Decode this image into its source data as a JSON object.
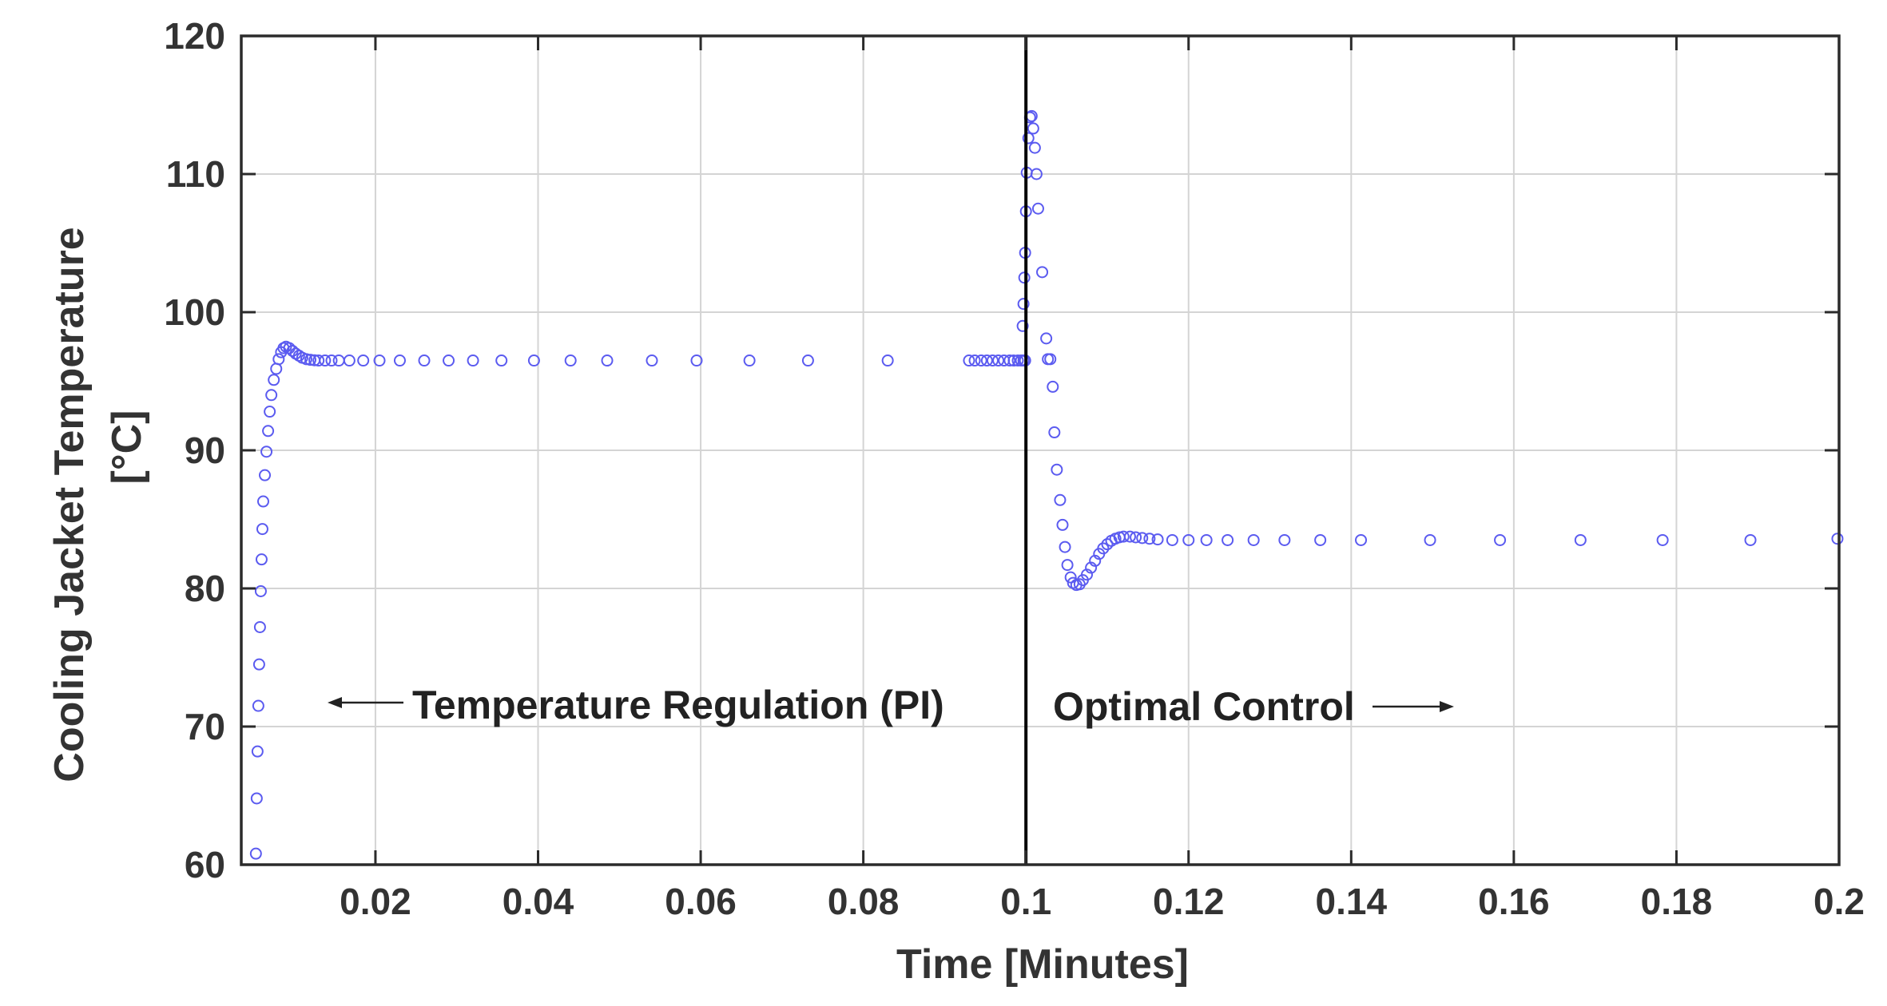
{
  "chart_data": {
    "type": "scatter",
    "title": "",
    "xlabel": "Time [Minutes]",
    "ylabel_lines": [
      "Cooling Jacket Temperature",
      "[°C]"
    ],
    "xlim": [
      0.0035,
      0.2
    ],
    "ylim": [
      60,
      120
    ],
    "x_ticks": [
      0.02,
      0.04,
      0.06,
      0.08,
      0.1,
      0.12,
      0.14,
      0.16,
      0.18,
      0.2
    ],
    "x_tick_labels": [
      "0.02",
      "0.04",
      "0.06",
      "0.08",
      "0.1",
      "0.12",
      "0.14",
      "0.16",
      "0.18",
      "0.2"
    ],
    "y_ticks": [
      60,
      70,
      80,
      90,
      100,
      110,
      120
    ],
    "y_tick_labels": [
      "60",
      "70",
      "80",
      "90",
      "100",
      "110",
      "120"
    ],
    "grid": true,
    "marker": "open-circle",
    "marker_color": "#5b5bf0",
    "divider_x": 0.1,
    "annotations": [
      {
        "text": "Temperature Regulation (PI)",
        "arrow": "left",
        "region": "left"
      },
      {
        "text": "Optimal Control",
        "arrow": "right",
        "region": "right"
      }
    ],
    "series": [
      {
        "name": "Cooling Jacket Temperature",
        "x": [
          0.0053,
          0.0054,
          0.0055,
          0.0056,
          0.0057,
          0.0058,
          0.0059,
          0.006,
          0.0061,
          0.0062,
          0.0064,
          0.0066,
          0.0068,
          0.007,
          0.0072,
          0.0075,
          0.0078,
          0.0081,
          0.0084,
          0.0087,
          0.009,
          0.0094,
          0.0098,
          0.0102,
          0.0106,
          0.011,
          0.0115,
          0.012,
          0.0125,
          0.013,
          0.0138,
          0.0146,
          0.0155,
          0.0168,
          0.0185,
          0.0205,
          0.023,
          0.026,
          0.029,
          0.032,
          0.0355,
          0.0395,
          0.044,
          0.0485,
          0.054,
          0.0595,
          0.066,
          0.0732,
          0.083,
          0.093,
          0.0937,
          0.0945,
          0.0952,
          0.0959,
          0.0966,
          0.0973,
          0.098,
          0.0985,
          0.099,
          0.0994,
          0.0997,
          0.0999,
          0.0996,
          0.0997,
          0.0998,
          0.0999,
          0.1,
          0.1001,
          0.1003,
          0.1005,
          0.1007,
          0.1009,
          0.1011,
          0.1013,
          0.1015,
          0.102,
          0.1025,
          0.1027,
          0.103,
          0.1033,
          0.1035,
          0.1038,
          0.1042,
          0.1045,
          0.1048,
          0.1051,
          0.1055,
          0.1058,
          0.1062,
          0.1066,
          0.107,
          0.1075,
          0.108,
          0.1085,
          0.109,
          0.1095,
          0.11,
          0.1105,
          0.111,
          0.1115,
          0.112,
          0.1128,
          0.1135,
          0.1143,
          0.1152,
          0.1162,
          0.118,
          0.12,
          0.1222,
          0.1248,
          0.128,
          0.1318,
          0.1362,
          0.1412,
          0.1497,
          0.1583,
          0.1682,
          0.1783,
          0.1891,
          0.1998
        ],
        "y": [
          60.8,
          64.8,
          68.2,
          71.5,
          74.5,
          77.2,
          79.8,
          82.1,
          84.3,
          86.3,
          88.2,
          89.9,
          91.4,
          92.8,
          94.0,
          95.1,
          95.9,
          96.6,
          97.1,
          97.4,
          97.5,
          97.4,
          97.2,
          97.0,
          96.85,
          96.7,
          96.6,
          96.55,
          96.52,
          96.5,
          96.5,
          96.5,
          96.5,
          96.5,
          96.5,
          96.5,
          96.5,
          96.5,
          96.5,
          96.5,
          96.5,
          96.5,
          96.5,
          96.5,
          96.5,
          96.5,
          96.5,
          96.5,
          96.5,
          96.5,
          96.5,
          96.5,
          96.5,
          96.5,
          96.5,
          96.5,
          96.5,
          96.5,
          96.5,
          96.5,
          96.5,
          96.5,
          99.0,
          100.6,
          102.5,
          104.3,
          107.3,
          110.1,
          112.6,
          114.1,
          114.2,
          113.3,
          111.9,
          110.0,
          107.5,
          102.9,
          98.1,
          96.6,
          96.6,
          94.6,
          91.3,
          88.6,
          86.4,
          84.6,
          83.0,
          81.7,
          80.8,
          80.4,
          80.25,
          80.3,
          80.6,
          81.0,
          81.5,
          82.0,
          82.5,
          82.9,
          83.2,
          83.45,
          83.6,
          83.7,
          83.75,
          83.75,
          83.7,
          83.65,
          83.6,
          83.55,
          83.5,
          83.5,
          83.5,
          83.5,
          83.5,
          83.5,
          83.5,
          83.5,
          83.5,
          83.5,
          83.5,
          83.5,
          83.5,
          83.6
        ]
      }
    ]
  }
}
